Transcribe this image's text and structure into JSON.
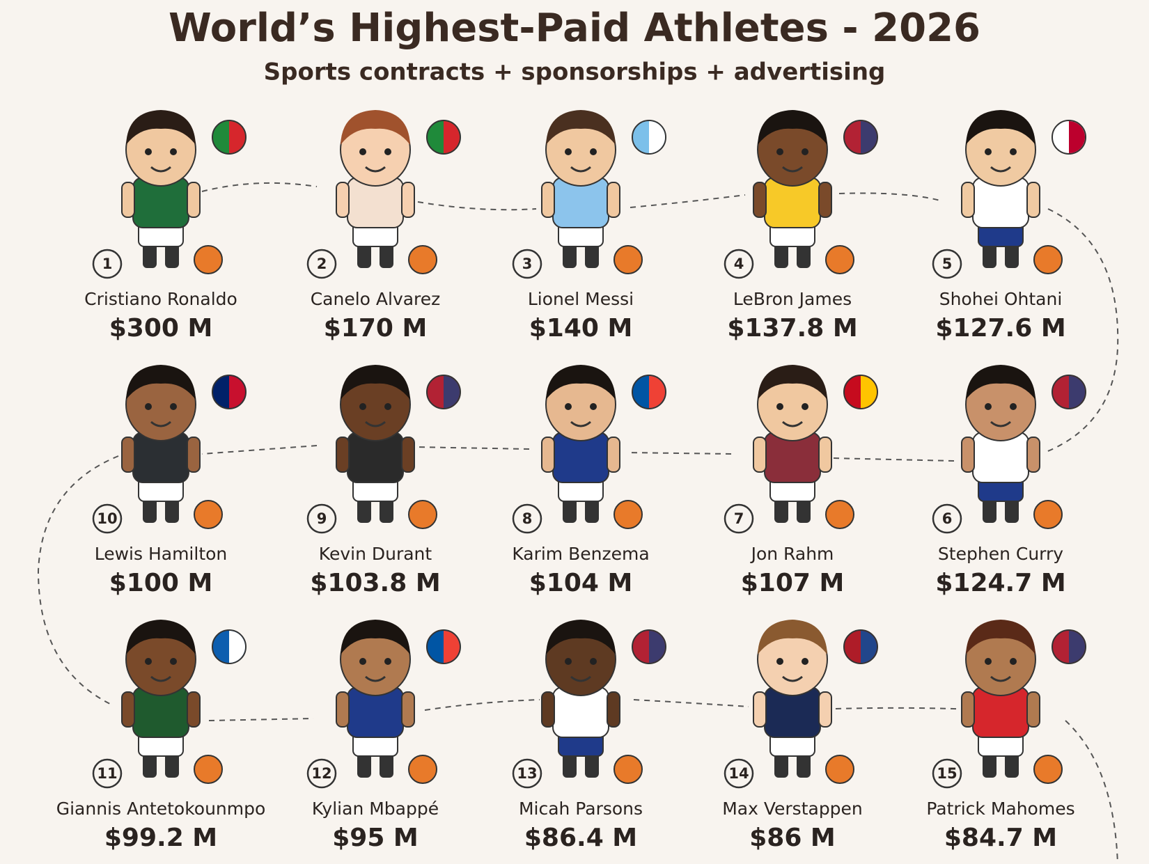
{
  "header": {
    "title": "World’s Highest-Paid Athletes - 2026",
    "subtitle": "Sports contracts + sponsorships + advertising"
  },
  "athletes": [
    {
      "rank": 1,
      "name": "Cristiano Ronaldo",
      "earnings": "$300 M"
    },
    {
      "rank": 2,
      "name": "Canelo Alvarez",
      "earnings": "$170 M"
    },
    {
      "rank": 3,
      "name": "Lionel Messi",
      "earnings": "$140 M"
    },
    {
      "rank": 4,
      "name": "LeBron James",
      "earnings": "$137.8 M"
    },
    {
      "rank": 5,
      "name": "Shohei Ohtani",
      "earnings": "$127.6 M"
    },
    {
      "rank": 6,
      "name": "Stephen Curry",
      "earnings": "$124.7 M"
    },
    {
      "rank": 7,
      "name": "Jon Rahm",
      "earnings": "$107 M"
    },
    {
      "rank": 8,
      "name": "Karim Benzema",
      "earnings": "$104 M"
    },
    {
      "rank": 9,
      "name": "Kevin Durant",
      "earnings": "$103.8 M"
    },
    {
      "rank": 10,
      "name": "Lewis Hamilton",
      "earnings": "$100 M"
    },
    {
      "rank": 11,
      "name": "Giannis Antetokounmpo",
      "earnings": "$99.2 M"
    },
    {
      "rank": 12,
      "name": "Kylian Mbappé",
      "earnings": "$95 M"
    },
    {
      "rank": 13,
      "name": "Micah Parsons",
      "earnings": "$86.4 M"
    },
    {
      "rank": 14,
      "name": "Max Verstappen",
      "earnings": "$86 M"
    },
    {
      "rank": 15,
      "name": "Patrick Mahomes",
      "earnings": "$84.7 M"
    }
  ]
}
